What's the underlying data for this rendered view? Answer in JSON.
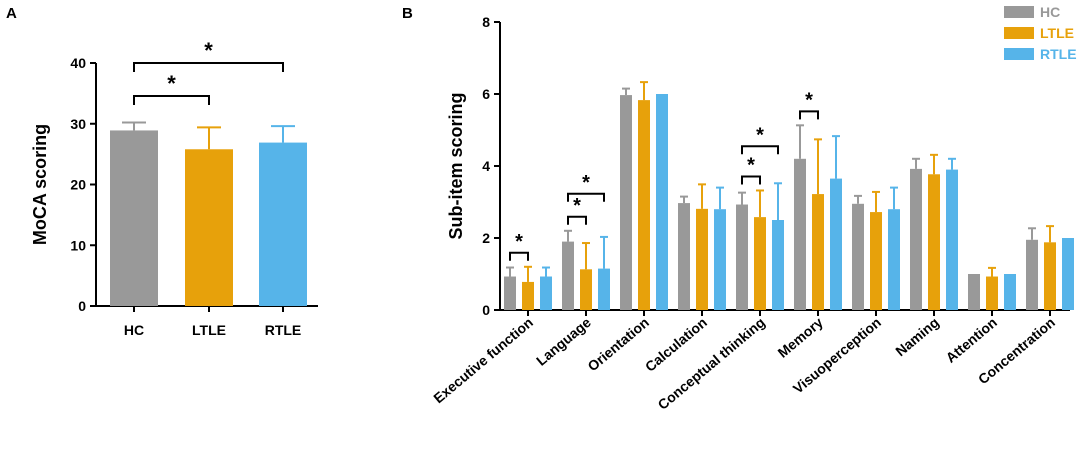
{
  "panel_labels": {
    "a": "A",
    "b": "B"
  },
  "chart_data": [
    {
      "type": "bar",
      "title": "",
      "xlabel": "",
      "ylabel": "MoCA scoring",
      "ylim": [
        0,
        40
      ],
      "yticks": [
        0,
        10,
        20,
        30,
        40
      ],
      "categories": [
        "HC",
        "LTLE",
        "RTLE"
      ],
      "values": [
        28.9,
        25.8,
        26.9
      ],
      "errors": [
        1.3,
        3.6,
        2.7
      ],
      "colors": [
        "#999999",
        "#e7a10b",
        "#56b4e9"
      ],
      "significance": [
        {
          "from": "HC",
          "to": "LTLE",
          "label": "*"
        },
        {
          "from": "HC",
          "to": "RTLE",
          "label": "*"
        }
      ]
    },
    {
      "type": "bar",
      "title": "",
      "xlabel": "",
      "ylabel": "Sub-item scoring",
      "ylim": [
        0,
        8
      ],
      "yticks": [
        0,
        2,
        4,
        6,
        8
      ],
      "categories": [
        "Executive function",
        "Language",
        "Orientation",
        "Calculation",
        "Conceptual thinking",
        "Memory",
        "Visuoperception",
        "Naming",
        "Attention",
        "Concentration"
      ],
      "legend": {
        "position": "top-right"
      },
      "series": [
        {
          "name": "HC",
          "color": "#999999",
          "values": [
            0.93,
            1.9,
            5.97,
            2.97,
            2.93,
            4.2,
            2.95,
            3.92,
            1.0,
            1.95
          ],
          "errors": [
            0.25,
            0.3,
            0.18,
            0.18,
            0.33,
            0.93,
            0.22,
            0.28,
            0,
            0.32
          ]
        },
        {
          "name": "LTLE",
          "color": "#e7a10b",
          "values": [
            0.78,
            1.13,
            5.83,
            2.81,
            2.58,
            3.22,
            2.72,
            3.77,
            0.93,
            1.88
          ],
          "errors": [
            0.42,
            0.73,
            0.5,
            0.68,
            0.74,
            1.52,
            0.56,
            0.54,
            0.24,
            0.45
          ]
        },
        {
          "name": "RTLE",
          "color": "#56b4e9",
          "values": [
            0.93,
            1.15,
            6.0,
            2.8,
            2.5,
            3.65,
            2.8,
            3.9,
            1.0,
            2.0
          ],
          "errors": [
            0.25,
            0.88,
            0,
            0.6,
            1.02,
            1.18,
            0.6,
            0.3,
            0,
            0
          ]
        }
      ],
      "significance": [
        {
          "category": "Executive function",
          "from": "HC",
          "to": "LTLE",
          "label": "*"
        },
        {
          "category": "Language",
          "from": "HC",
          "to": "LTLE",
          "label": "*"
        },
        {
          "category": "Language",
          "from": "HC",
          "to": "RTLE",
          "label": "*"
        },
        {
          "category": "Conceptual thinking",
          "from": "HC",
          "to": "LTLE",
          "label": "*"
        },
        {
          "category": "Conceptual thinking",
          "from": "HC",
          "to": "RTLE",
          "label": "*"
        },
        {
          "category": "Memory",
          "from": "HC",
          "to": "LTLE",
          "label": "*"
        }
      ]
    }
  ]
}
